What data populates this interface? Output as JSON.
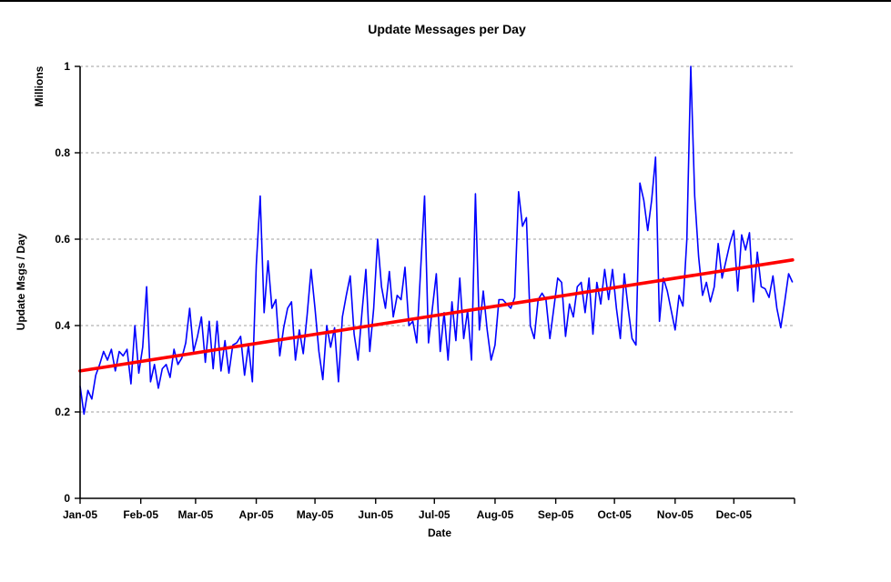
{
  "page": {
    "background_color": "#ffffff",
    "top_border_color": "#000000"
  },
  "chart_data": {
    "type": "line",
    "title": "Update Messages per Day",
    "xlabel": "Date",
    "ylabel": "Update Msgs / Day",
    "y_units_label": "Millions",
    "ylim": [
      0,
      1
    ],
    "yticks": [
      0,
      0.2,
      0.4,
      0.6,
      0.8,
      1
    ],
    "ytick_labels": [
      "0",
      "0.2",
      "0.4",
      "0.6",
      "0.8",
      "1"
    ],
    "x_tick_labels": [
      "Jan-05",
      "Feb-05",
      "Mar-05",
      "Apr-05",
      "May-05",
      "Jun-05",
      "Jul-05",
      "Aug-05",
      "Sep-05",
      "Oct-05",
      "Nov-05",
      "Dec-05"
    ],
    "x_month_start_days": [
      0,
      31,
      59,
      90,
      120,
      151,
      181,
      212,
      243,
      273,
      304,
      334
    ],
    "x_range_days": 365,
    "grid": "horizontal-dashed",
    "gridline_color": "#bfbfbf",
    "axis_color": "#000000",
    "legend": "none",
    "series": [
      {
        "name": "daily-update-messages",
        "color": "#0000ff",
        "sample_interval_days": 2,
        "values": [
          0.26,
          0.195,
          0.25,
          0.23,
          0.285,
          0.31,
          0.34,
          0.32,
          0.345,
          0.295,
          0.34,
          0.33,
          0.345,
          0.265,
          0.4,
          0.29,
          0.35,
          0.49,
          0.27,
          0.31,
          0.255,
          0.3,
          0.31,
          0.28,
          0.345,
          0.31,
          0.325,
          0.36,
          0.44,
          0.34,
          0.375,
          0.42,
          0.315,
          0.41,
          0.3,
          0.41,
          0.295,
          0.365,
          0.29,
          0.355,
          0.36,
          0.375,
          0.285,
          0.355,
          0.27,
          0.54,
          0.7,
          0.43,
          0.55,
          0.44,
          0.46,
          0.33,
          0.395,
          0.44,
          0.455,
          0.32,
          0.39,
          0.335,
          0.425,
          0.53,
          0.44,
          0.34,
          0.275,
          0.4,
          0.35,
          0.395,
          0.27,
          0.42,
          0.47,
          0.515,
          0.38,
          0.32,
          0.43,
          0.53,
          0.34,
          0.44,
          0.6,
          0.49,
          0.44,
          0.525,
          0.42,
          0.47,
          0.46,
          0.535,
          0.4,
          0.41,
          0.36,
          0.53,
          0.7,
          0.36,
          0.44,
          0.52,
          0.34,
          0.43,
          0.32,
          0.455,
          0.365,
          0.51,
          0.37,
          0.435,
          0.32,
          0.705,
          0.39,
          0.48,
          0.39,
          0.32,
          0.355,
          0.46,
          0.46,
          0.45,
          0.44,
          0.465,
          0.71,
          0.63,
          0.65,
          0.4,
          0.37,
          0.46,
          0.475,
          0.46,
          0.37,
          0.44,
          0.51,
          0.5,
          0.375,
          0.45,
          0.42,
          0.49,
          0.5,
          0.43,
          0.51,
          0.38,
          0.5,
          0.45,
          0.53,
          0.46,
          0.53,
          0.44,
          0.37,
          0.52,
          0.44,
          0.37,
          0.355,
          0.73,
          0.69,
          0.62,
          0.69,
          0.79,
          0.41,
          0.51,
          0.48,
          0.435,
          0.39,
          0.47,
          0.445,
          0.6,
          1.0,
          0.7,
          0.56,
          0.47,
          0.5,
          0.455,
          0.49,
          0.59,
          0.51,
          0.55,
          0.59,
          0.62,
          0.48,
          0.61,
          0.575,
          0.615,
          0.455,
          0.57,
          0.49,
          0.485,
          0.465,
          0.515,
          0.44,
          0.395,
          0.455,
          0.52,
          0.5
        ]
      },
      {
        "name": "linear-trend",
        "color": "#ff0000",
        "trend": {
          "start_value": 0.295,
          "end_value": 0.552
        }
      }
    ]
  }
}
